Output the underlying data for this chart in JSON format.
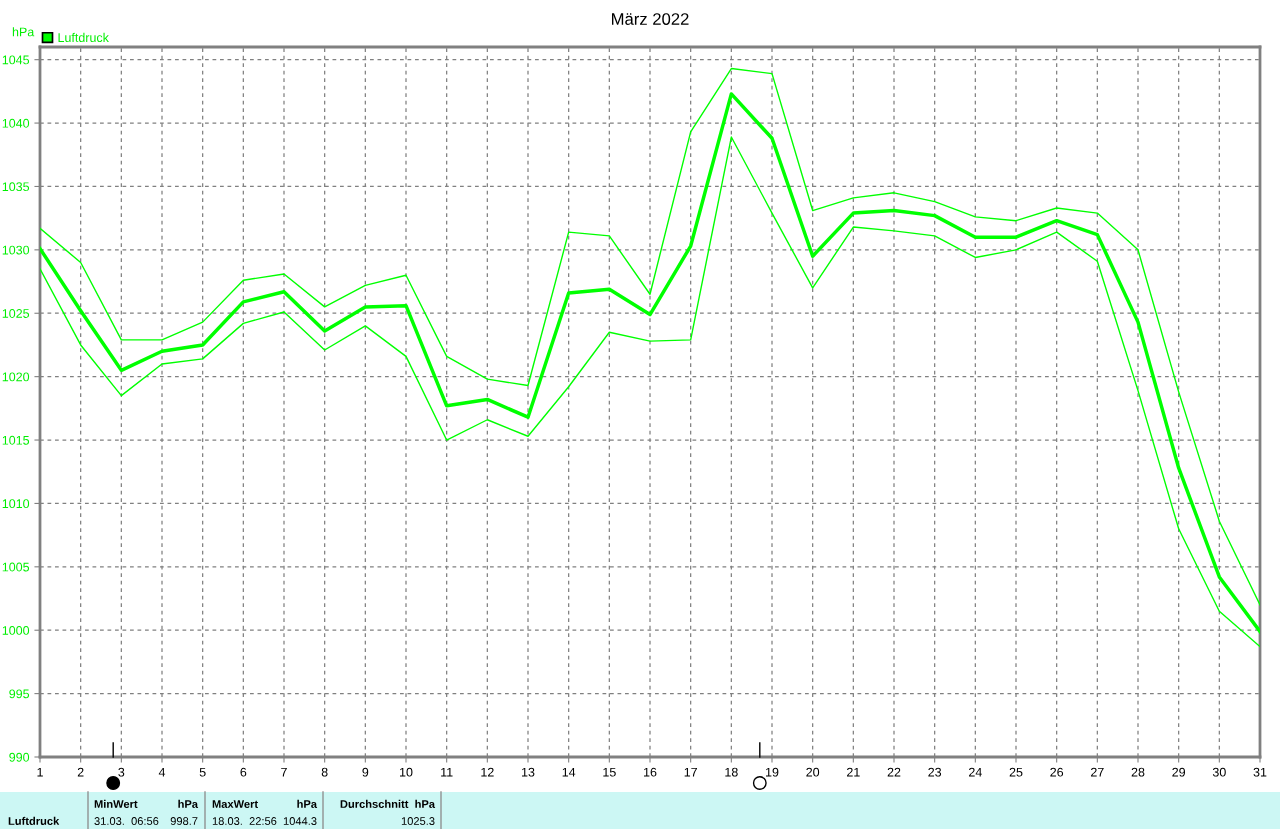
{
  "chart_data": {
    "type": "line",
    "title": "März 2022",
    "ylabel": "hPa",
    "x": [
      1,
      2,
      3,
      4,
      5,
      6,
      7,
      8,
      9,
      10,
      11,
      12,
      13,
      14,
      15,
      16,
      17,
      18,
      19,
      20,
      21,
      22,
      23,
      24,
      25,
      26,
      27,
      28,
      29,
      30,
      31
    ],
    "series": [
      {
        "name": "Luftdruck",
        "color": "#00ff00",
        "values": [
          1030.1,
          1025.2,
          1020.5,
          1022.0,
          1022.5,
          1025.9,
          1026.7,
          1023.6,
          1025.5,
          1025.6,
          1017.7,
          1018.2,
          1016.8,
          1026.6,
          1026.9,
          1024.9,
          1030.3,
          1042.3,
          1038.8,
          1029.5,
          1032.9,
          1033.1,
          1032.7,
          1031.0,
          1031.0,
          1032.3,
          1031.2,
          1024.3,
          1012.8,
          1004.2,
          999.9
        ]
      },
      {
        "color": "#00ff00",
        "values": [
          1031.7,
          1029.0,
          1022.9,
          1022.9,
          1024.3,
          1027.6,
          1028.1,
          1025.5,
          1027.2,
          1028.0,
          1021.6,
          1019.8,
          1019.3,
          1031.4,
          1031.1,
          1026.5,
          1039.3,
          1044.3,
          1043.9,
          1033.1,
          1034.1,
          1034.5,
          1033.8,
          1032.6,
          1032.3,
          1033.3,
          1032.9,
          1030.0,
          1018.8,
          1008.6,
          1002.0
        ]
      },
      {
        "color": "#00ff00",
        "values": [
          1028.5,
          1022.5,
          1018.5,
          1021.0,
          1021.4,
          1024.2,
          1025.1,
          1022.1,
          1024.0,
          1021.6,
          1015.0,
          1016.6,
          1015.3,
          1019.2,
          1023.5,
          1022.8,
          1022.9,
          1038.9,
          1032.9,
          1027.0,
          1031.8,
          1031.5,
          1031.1,
          1029.4,
          1030.0,
          1031.4,
          1029.1,
          1018.9,
          1008.0,
          1001.5,
          998.7
        ]
      }
    ],
    "xlim": [
      1,
      31
    ],
    "xticks": [
      1,
      2,
      3,
      4,
      5,
      6,
      7,
      8,
      9,
      10,
      11,
      12,
      13,
      14,
      15,
      16,
      17,
      18,
      19,
      20,
      21,
      22,
      23,
      24,
      25,
      26,
      27,
      28,
      29,
      30,
      31
    ],
    "ylim": [
      990,
      1046
    ],
    "yticks": [
      990,
      995,
      1000,
      1005,
      1010,
      1015,
      1020,
      1025,
      1030,
      1035,
      1040,
      1045
    ],
    "grid": true,
    "line_style": "solid",
    "marker": "none",
    "legend": "top left",
    "annotations": [
      "Luftdruck",
      "MinWert",
      "hPa",
      "31.03.  06:56",
      "998.7",
      "MaxWert",
      "hPa",
      "18.03.  22:56",
      "1044.3",
      "Durchschnitt  hPa",
      "1025.3"
    ]
  }
}
